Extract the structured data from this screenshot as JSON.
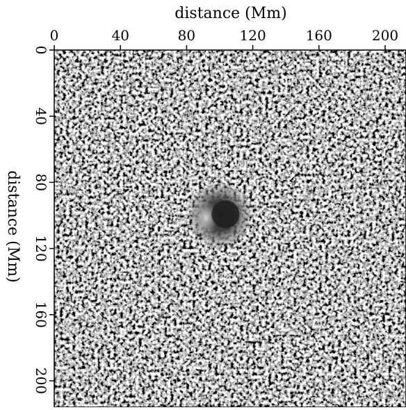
{
  "figure": {
    "x_axis": {
      "label": "distance (Mm)",
      "position": "top",
      "ticks": [
        "0",
        "40",
        "80",
        "120",
        "160",
        "200"
      ],
      "tick_values": [
        0,
        40,
        80,
        120,
        160,
        200
      ],
      "range": [
        0,
        212
      ]
    },
    "y_axis": {
      "label": "distance (Mm)",
      "position": "left",
      "ticks": [
        "0",
        "40",
        "80",
        "120",
        "160",
        "200"
      ],
      "tick_values": [
        0,
        40,
        80,
        120,
        160,
        200
      ],
      "range": [
        0,
        212
      ],
      "inverted": true
    },
    "image": {
      "kind": "grayscale solar surface map",
      "colormap": "gray",
      "feature": "sunspot",
      "feature_center_mm": [
        100,
        100
      ],
      "feature_radius_mm": 14
    },
    "colors": {
      "background": "#ffffff",
      "axis": "#000000"
    }
  }
}
